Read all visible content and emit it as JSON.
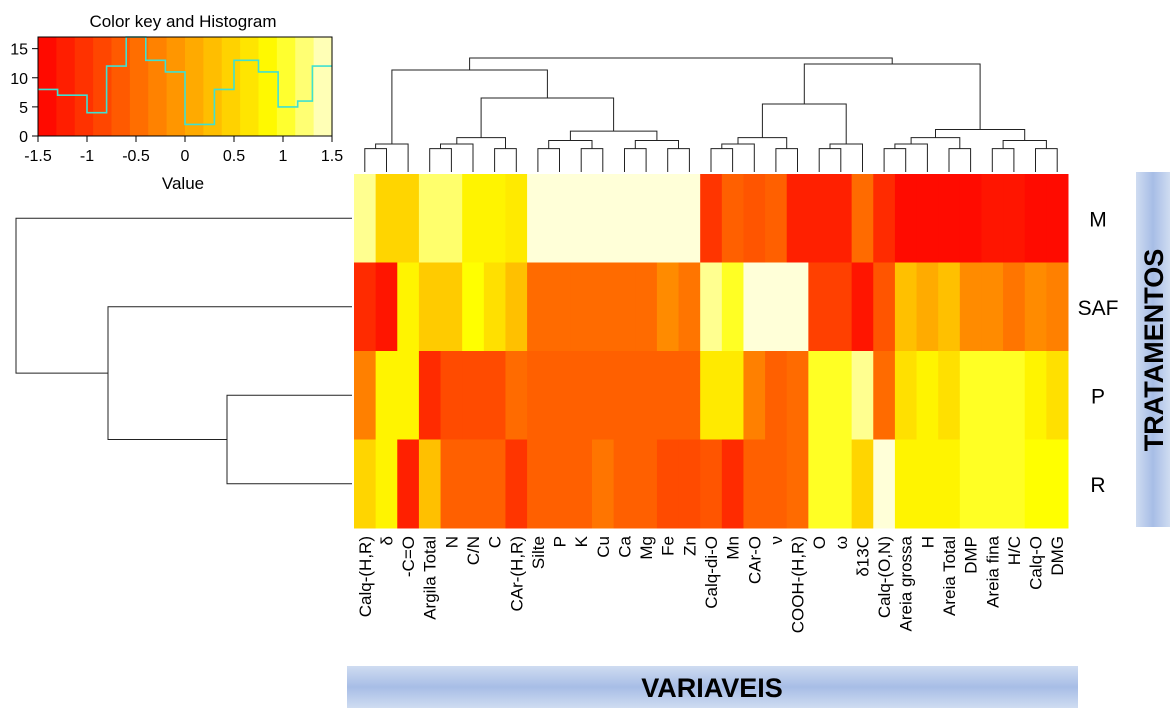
{
  "chart_data": {
    "type": "heatmap",
    "rows": [
      "M",
      "SAF",
      "P",
      "R"
    ],
    "columns": [
      "Calq-(H,R)",
      "δ",
      "-C=O",
      "Argila Total",
      "N",
      "C/N",
      "C",
      "CAr-(H,R)",
      "Silte",
      "P",
      "K",
      "Cu",
      "Ca",
      "Mg",
      "Fe",
      "Zn",
      "Calq-di-O",
      "Mn",
      "CAr-O",
      "ν",
      "COOH-(H,R)",
      "O",
      "ω",
      "δ13C",
      "Calq-(O,N)",
      "Areia grossa",
      "H",
      "Areia Total",
      "DMP",
      "Areia fina",
      "H/C",
      "Calq-O",
      "DMG"
    ],
    "values": [
      [
        1.3,
        0.5,
        0.5,
        1.2,
        1.2,
        0.8,
        0.8,
        0.7,
        1.5,
        1.5,
        1.5,
        1.5,
        1.5,
        1.5,
        1.5,
        1.5,
        -1.0,
        -0.6,
        -0.7,
        -0.6,
        -1.2,
        -1.2,
        -1.2,
        -0.5,
        -1.1,
        -1.4,
        -1.4,
        -1.4,
        -1.4,
        -1.3,
        -1.3,
        -1.4,
        -1.4
      ],
      [
        -1.1,
        -1.3,
        0.8,
        0.4,
        0.4,
        0.9,
        0.6,
        0.3,
        -0.5,
        -0.5,
        -0.5,
        -0.5,
        -0.5,
        -0.5,
        -0.2,
        -0.4,
        1.3,
        1.0,
        1.5,
        1.5,
        1.5,
        -0.9,
        -0.9,
        -1.3,
        -0.7,
        0.3,
        0.1,
        0.3,
        -0.2,
        -0.2,
        -0.4,
        -0.2,
        -0.3
      ],
      [
        -0.3,
        0.8,
        0.8,
        -1.1,
        -0.8,
        -0.8,
        -0.8,
        -0.5,
        -0.6,
        -0.6,
        -0.6,
        -0.6,
        -0.6,
        -0.6,
        -0.6,
        -0.6,
        0.7,
        0.7,
        -0.3,
        -0.6,
        -0.5,
        1.0,
        1.0,
        1.3,
        -0.5,
        0.6,
        0.8,
        0.6,
        1.0,
        1.0,
        1.0,
        0.8,
        0.6
      ],
      [
        0.5,
        0.8,
        -1.2,
        0.3,
        -0.6,
        -0.6,
        -0.6,
        -1.0,
        -0.6,
        -0.6,
        -0.6,
        -0.4,
        -0.6,
        -0.6,
        -0.8,
        -0.8,
        -0.7,
        -1.1,
        -0.6,
        -0.6,
        -0.5,
        1.0,
        1.0,
        0.5,
        1.5,
        0.8,
        0.8,
        0.8,
        1.0,
        1.0,
        1.0,
        0.9,
        0.9
      ]
    ],
    "color_scale": [
      "#ff0000",
      "#ff4000",
      "#ff8000",
      "#ffc000",
      "#ffff00",
      "#ffffd8"
    ],
    "color_key": {
      "title": "Color key and Histogram",
      "xlabel": "Value",
      "x_ticks": [
        "-1.5",
        "-1",
        "-0.5",
        "0",
        "0.5",
        "1",
        "1.5"
      ],
      "y_ticks": [
        "0",
        "5",
        "10",
        "15"
      ],
      "xlim": [
        -1.5,
        1.5
      ],
      "ylim": [
        0,
        17
      ],
      "histogram_steps": [
        [
          -1.5,
          8
        ],
        [
          -1.3,
          7
        ],
        [
          -1.0,
          4
        ],
        [
          -0.8,
          12
        ],
        [
          -0.6,
          17
        ],
        [
          -0.4,
          13
        ],
        [
          -0.2,
          11
        ],
        [
          0.0,
          2
        ],
        [
          0.3,
          8
        ],
        [
          0.5,
          13
        ],
        [
          0.75,
          11
        ],
        [
          0.95,
          5
        ],
        [
          1.15,
          6
        ],
        [
          1.3,
          12
        ],
        [
          1.5,
          12
        ]
      ],
      "histogram_color": "#40e0d0"
    },
    "xlabel": "VARIAVEIS",
    "ylabel": "TRATAMENTOS",
    "row_dendrogram": true,
    "column_dendrogram": true
  }
}
